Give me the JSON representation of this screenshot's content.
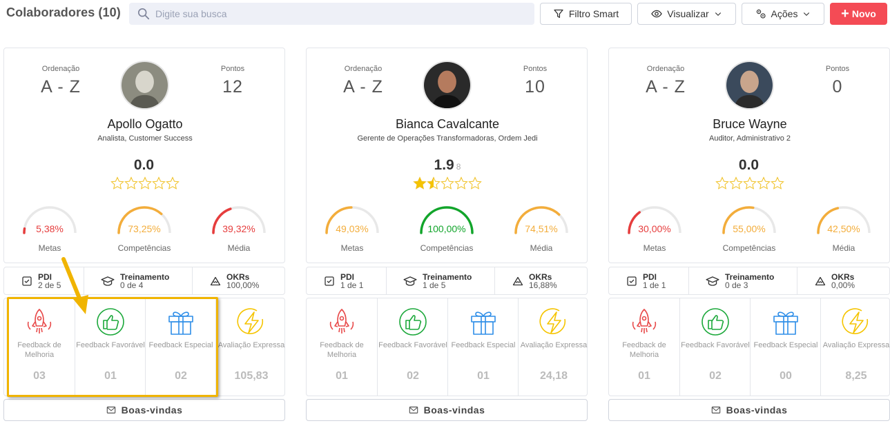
{
  "header": {
    "title": "Colaboradores (10)",
    "search_placeholder": "Digite sua busca",
    "filter_label": "Filtro Smart",
    "view_label": "Visualizar",
    "actions_label": "Ações",
    "new_label": "Novo"
  },
  "colors": {
    "accent_red": "#f44b55",
    "gauge_red": "#e63d3d",
    "gauge_orange": "#f3ad3b",
    "gauge_green": "#12a52b",
    "highlight": "#f0b400"
  },
  "labels": {
    "ordering": "Ordenação",
    "points": "Pontos",
    "goals": "Metas",
    "competencies": "Competências",
    "average": "Média",
    "pdi": "PDI",
    "training": "Treinamento",
    "okrs": "OKRs",
    "fb_improvement": "Feedback de Melhoria",
    "fb_favorable": "Feedback Favorável",
    "fb_special": "Feedback Especial",
    "express_eval": "Avaliação Expressa",
    "welcome": "Boas-vindas"
  },
  "cards": [
    {
      "name": "Apollo Ogatto",
      "role": "Analista, Customer Success",
      "ordering": "A - Z",
      "points": "12",
      "score": "0.0",
      "rating_count": "",
      "stars": 0,
      "goals": {
        "text": "5,38%",
        "value": 5.38,
        "color": "#e63d3d"
      },
      "competencies": {
        "text": "73,25%",
        "value": 73.25,
        "color": "#f3ad3b"
      },
      "average": {
        "text": "39,32%",
        "value": 39.32,
        "color": "#e63d3d"
      },
      "pdi": "2 de 5",
      "training": "0 de 4",
      "okrs": "100,00%",
      "fb_improvement": "03",
      "fb_favorable": "01",
      "fb_special": "02",
      "express_eval": "105,83"
    },
    {
      "name": "Bianca Cavalcante",
      "role": "Gerente de Operações Transformadoras, Ordem Jedi",
      "ordering": "A - Z",
      "points": "10",
      "score": "1.9",
      "rating_count": "8",
      "stars": 1.5,
      "goals": {
        "text": "49,03%",
        "value": 49.03,
        "color": "#f3ad3b"
      },
      "competencies": {
        "text": "100,00%",
        "value": 100,
        "color": "#12a52b"
      },
      "average": {
        "text": "74,51%",
        "value": 74.51,
        "color": "#f3ad3b"
      },
      "pdi": "1 de 1",
      "training": "1 de 5",
      "okrs": "16,88%",
      "fb_improvement": "01",
      "fb_favorable": "02",
      "fb_special": "01",
      "express_eval": "24,18"
    },
    {
      "name": "Bruce Wayne",
      "role": "Auditor, Administrativo 2",
      "ordering": "A - Z",
      "points": "0",
      "score": "0.0",
      "rating_count": "",
      "stars": 0,
      "goals": {
        "text": "30,00%",
        "value": 30,
        "color": "#e63d3d"
      },
      "competencies": {
        "text": "55,00%",
        "value": 55,
        "color": "#f3ad3b"
      },
      "average": {
        "text": "42,50%",
        "value": 42.5,
        "color": "#f3ad3b"
      },
      "pdi": "1 de 1",
      "training": "0 de 3",
      "okrs": "0,00%",
      "fb_improvement": "01",
      "fb_favorable": "02",
      "fb_special": "00",
      "express_eval": "8,25"
    }
  ]
}
